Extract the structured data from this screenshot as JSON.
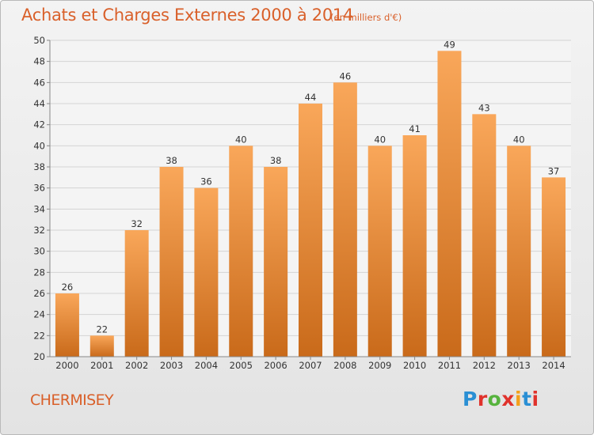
{
  "header": {
    "title": "Achats et Charges Externes 2000 à 2014",
    "subtitle": "(en milliers d'€)"
  },
  "footer": {
    "commune": "CHERMISEY",
    "logo_text": "Proxiti"
  },
  "colors": {
    "bar_top": "#f9a75a",
    "bar_bottom": "#c96a1a",
    "title": "#d9602a",
    "logo": [
      "#2a8fd4",
      "#e0322c",
      "#56b33d",
      "#e0322c",
      "#f4a01b",
      "#2a8fd4",
      "#e0322c"
    ]
  },
  "chart_data": {
    "type": "bar",
    "title": "Achats et Charges Externes 2000 à 2014",
    "subtitle": "(en milliers d'€)",
    "categories": [
      "2000",
      "2001",
      "2002",
      "2003",
      "2004",
      "2005",
      "2006",
      "2007",
      "2008",
      "2009",
      "2010",
      "2011",
      "2012",
      "2013",
      "2014"
    ],
    "values": [
      26,
      22,
      32,
      38,
      36,
      40,
      38,
      44,
      46,
      40,
      41,
      49,
      43,
      40,
      37
    ],
    "ylim": [
      20,
      50
    ],
    "yticks": [
      20,
      22,
      24,
      26,
      28,
      30,
      32,
      34,
      36,
      38,
      40,
      42,
      44,
      46,
      48,
      50
    ],
    "grid": true,
    "data_labels": true
  }
}
